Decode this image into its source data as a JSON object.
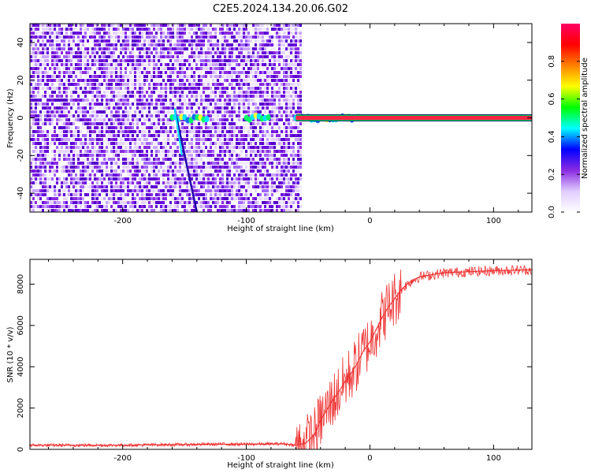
{
  "figure_title": "C2E5.2024.134.20.06.G02",
  "chart_data": [
    {
      "type": "heatmap",
      "xlabel": "Height of straight line (km)",
      "ylabel": "Frequency (Hz)",
      "xlim": [
        -275,
        131
      ],
      "ylim": [
        -50,
        50
      ],
      "xticks": [
        -200,
        -100,
        0,
        100
      ],
      "yticks": [
        -40,
        -20,
        0,
        20,
        40
      ],
      "colorbar": {
        "label": "Normalized spectral amplitude",
        "range": [
          0,
          1
        ],
        "ticks": [
          0.0,
          0.2,
          0.4,
          0.6,
          0.8
        ],
        "colormap": [
          "#ffffff",
          "#e0ccff",
          "#8a2be2",
          "#0000ff",
          "#00ffff",
          "#00ff00",
          "#ffff00",
          "#ff8000",
          "#ff0000",
          "#ff0066"
        ]
      },
      "features": {
        "noise_region_x": [
          -275,
          -57
        ],
        "carrier_line_x": [
          -60,
          131
        ],
        "carrier_frequency": 0,
        "drifting_trace": {
          "x": [
            -158,
            -140
          ],
          "y": [
            5,
            -50
          ]
        }
      }
    },
    {
      "type": "line",
      "xlabel": "Height of straight line (km)",
      "ylabel": "SNR (10 * v/v)",
      "xlim": [
        -275,
        131
      ],
      "ylim": [
        0,
        9200
      ],
      "xticks": [
        -200,
        -100,
        0,
        100
      ],
      "yticks": [
        0,
        2000,
        4000,
        6000,
        8000
      ],
      "color": "#ee3333",
      "series": [
        {
          "x": [
            -275,
            -250,
            -225,
            -200,
            -175,
            -150,
            -125,
            -100,
            -80,
            -70,
            -60,
            -52,
            -45,
            -40,
            -35,
            -30,
            -25,
            -20,
            -15,
            -10,
            -5,
            0,
            5,
            10,
            15,
            20,
            25,
            30,
            35,
            40,
            50,
            60,
            80,
            100,
            131
          ],
          "y": [
            200,
            200,
            200,
            200,
            220,
            230,
            250,
            250,
            260,
            270,
            200,
            300,
            700,
            1400,
            1900,
            2400,
            2800,
            3300,
            3700,
            4200,
            4800,
            5200,
            5800,
            6400,
            6900,
            7300,
            7700,
            8000,
            8200,
            8350,
            8450,
            8550,
            8600,
            8650,
            8700
          ]
        }
      ]
    }
  ]
}
